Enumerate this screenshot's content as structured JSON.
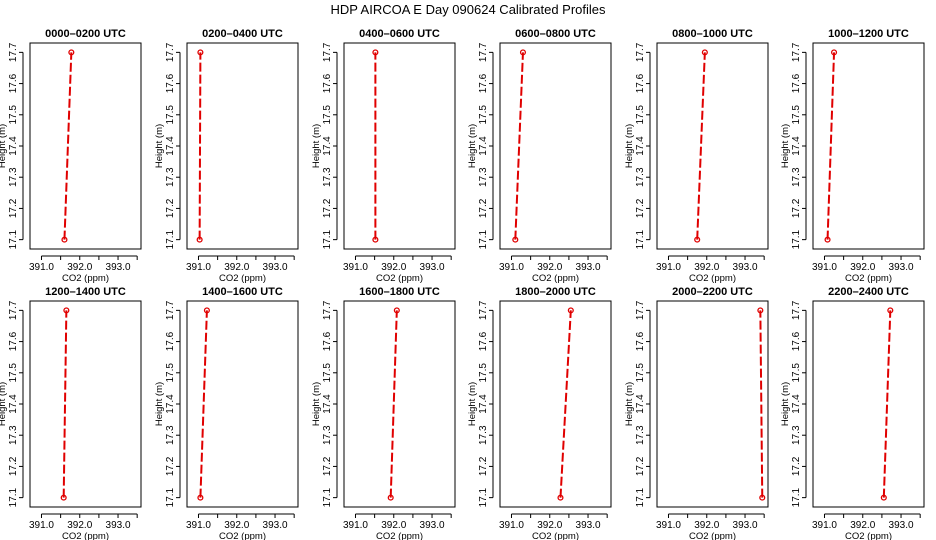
{
  "figure": {
    "title": "HDP AIRCOA E  Day 090624  Calibrated Profiles"
  },
  "colors": {
    "profile": "#e00000",
    "axes": "#000000",
    "background": "#ffffff"
  },
  "chart_data": [
    {
      "type": "line",
      "title": "0000–0200 UTC",
      "xlabel": "CO2 (ppm)",
      "ylabel": "Height (m)",
      "xlim": [
        390.7,
        393.6
      ],
      "ylim": [
        17.07,
        17.73
      ],
      "xticks": [
        "391.0",
        "392.0",
        "393.0"
      ],
      "yticks": [
        "17.1",
        "17.2",
        "17.3",
        "17.4",
        "17.5",
        "17.6",
        "17.7"
      ],
      "series": [
        {
          "x": [
            391.6,
            391.78
          ],
          "y": [
            17.1,
            17.7
          ]
        }
      ]
    },
    {
      "type": "line",
      "title": "0200–0400 UTC",
      "xlabel": "CO2 (ppm)",
      "ylabel": "Height (m)",
      "xlim": [
        390.7,
        393.6
      ],
      "ylim": [
        17.07,
        17.73
      ],
      "xticks": [
        "391.0",
        "392.0",
        "393.0"
      ],
      "yticks": [
        "17.1",
        "17.2",
        "17.3",
        "17.4",
        "17.5",
        "17.6",
        "17.7"
      ],
      "series": [
        {
          "x": [
            391.03,
            391.05
          ],
          "y": [
            17.1,
            17.7
          ]
        }
      ]
    },
    {
      "type": "line",
      "title": "0400–0600 UTC",
      "xlabel": "CO2 (ppm)",
      "ylabel": "Height (m)",
      "xlim": [
        390.7,
        393.6
      ],
      "ylim": [
        17.07,
        17.73
      ],
      "xticks": [
        "391.0",
        "392.0",
        "393.0"
      ],
      "yticks": [
        "17.1",
        "17.2",
        "17.3",
        "17.4",
        "17.5",
        "17.6",
        "17.7"
      ],
      "series": [
        {
          "x": [
            391.52,
            391.52
          ],
          "y": [
            17.1,
            17.7
          ]
        }
      ]
    },
    {
      "type": "line",
      "title": "0600–0800 UTC",
      "xlabel": "CO2 (ppm)",
      "ylabel": "Height (m)",
      "xlim": [
        390.7,
        393.6
      ],
      "ylim": [
        17.07,
        17.73
      ],
      "xticks": [
        "391.0",
        "392.0",
        "393.0"
      ],
      "yticks": [
        "17.1",
        "17.2",
        "17.3",
        "17.4",
        "17.5",
        "17.6",
        "17.7"
      ],
      "series": [
        {
          "x": [
            391.1,
            391.3
          ],
          "y": [
            17.1,
            17.7
          ]
        }
      ]
    },
    {
      "type": "line",
      "title": "0800–1000 UTC",
      "xlabel": "CO2 (ppm)",
      "ylabel": "Height (m)",
      "xlim": [
        390.7,
        393.6
      ],
      "ylim": [
        17.07,
        17.73
      ],
      "xticks": [
        "391.0",
        "392.0",
        "393.0"
      ],
      "yticks": [
        "17.1",
        "17.2",
        "17.3",
        "17.4",
        "17.5",
        "17.6",
        "17.7"
      ],
      "series": [
        {
          "x": [
            391.75,
            391.95
          ],
          "y": [
            17.1,
            17.7
          ]
        }
      ]
    },
    {
      "type": "line",
      "title": "1000–1200 UTC",
      "xlabel": "CO2 (ppm)",
      "ylabel": "Height (m)",
      "xlim": [
        390.7,
        393.6
      ],
      "ylim": [
        17.07,
        17.73
      ],
      "xticks": [
        "391.0",
        "392.0",
        "393.0"
      ],
      "yticks": [
        "17.1",
        "17.2",
        "17.3",
        "17.4",
        "17.5",
        "17.6",
        "17.7"
      ],
      "series": [
        {
          "x": [
            391.08,
            391.25
          ],
          "y": [
            17.1,
            17.7
          ]
        }
      ]
    },
    {
      "type": "line",
      "title": "1200–1400 UTC",
      "xlabel": "CO2 (ppm)",
      "ylabel": "Height (m)",
      "xlim": [
        390.7,
        393.6
      ],
      "ylim": [
        17.07,
        17.73
      ],
      "xticks": [
        "391.0",
        "392.0",
        "393.0"
      ],
      "yticks": [
        "17.1",
        "17.2",
        "17.3",
        "17.4",
        "17.5",
        "17.6",
        "17.7"
      ],
      "series": [
        {
          "x": [
            391.58,
            391.65
          ],
          "y": [
            17.1,
            17.7
          ]
        }
      ]
    },
    {
      "type": "line",
      "title": "1400–1600 UTC",
      "xlabel": "CO2 (ppm)",
      "ylabel": "Height (m)",
      "xlim": [
        390.7,
        393.6
      ],
      "ylim": [
        17.07,
        17.73
      ],
      "xticks": [
        "391.0",
        "392.0",
        "393.0"
      ],
      "yticks": [
        "17.1",
        "17.2",
        "17.3",
        "17.4",
        "17.5",
        "17.6",
        "17.7"
      ],
      "series": [
        {
          "x": [
            391.05,
            391.22
          ],
          "y": [
            17.1,
            17.7
          ]
        }
      ]
    },
    {
      "type": "line",
      "title": "1600–1800 UTC",
      "xlabel": "CO2 (ppm)",
      "ylabel": "Height (m)",
      "xlim": [
        390.7,
        393.6
      ],
      "ylim": [
        17.07,
        17.73
      ],
      "xticks": [
        "391.0",
        "392.0",
        "393.0"
      ],
      "yticks": [
        "17.1",
        "17.2",
        "17.3",
        "17.4",
        "17.5",
        "17.6",
        "17.7"
      ],
      "series": [
        {
          "x": [
            391.92,
            392.08
          ],
          "y": [
            17.1,
            17.7
          ]
        }
      ]
    },
    {
      "type": "line",
      "title": "1800–2000 UTC",
      "xlabel": "CO2 (ppm)",
      "ylabel": "Height (m)",
      "xlim": [
        390.7,
        393.6
      ],
      "ylim": [
        17.07,
        17.73
      ],
      "xticks": [
        "391.0",
        "392.0",
        "393.0"
      ],
      "yticks": [
        "17.1",
        "17.2",
        "17.3",
        "17.4",
        "17.5",
        "17.6",
        "17.7"
      ],
      "series": [
        {
          "x": [
            392.28,
            392.55
          ],
          "y": [
            17.1,
            17.7
          ]
        }
      ]
    },
    {
      "type": "line",
      "title": "2000–2200 UTC",
      "xlabel": "CO2 (ppm)",
      "ylabel": "Height (m)",
      "xlim": [
        390.7,
        393.6
      ],
      "ylim": [
        17.07,
        17.73
      ],
      "xticks": [
        "391.0",
        "392.0",
        "393.0"
      ],
      "yticks": [
        "17.1",
        "17.2",
        "17.3",
        "17.4",
        "17.5",
        "17.6",
        "17.7"
      ],
      "series": [
        {
          "x": [
            393.45,
            393.4
          ],
          "y": [
            17.1,
            17.7
          ]
        }
      ]
    },
    {
      "type": "line",
      "title": "2200–2400 UTC",
      "xlabel": "CO2 (ppm)",
      "ylabel": "Height (m)",
      "xlim": [
        390.7,
        393.6
      ],
      "ylim": [
        17.07,
        17.73
      ],
      "xticks": [
        "391.0",
        "392.0",
        "393.0"
      ],
      "yticks": [
        "17.1",
        "17.2",
        "17.3",
        "17.4",
        "17.5",
        "17.6",
        "17.7"
      ],
      "series": [
        {
          "x": [
            392.55,
            392.72
          ],
          "y": [
            17.1,
            17.7
          ]
        }
      ]
    }
  ]
}
